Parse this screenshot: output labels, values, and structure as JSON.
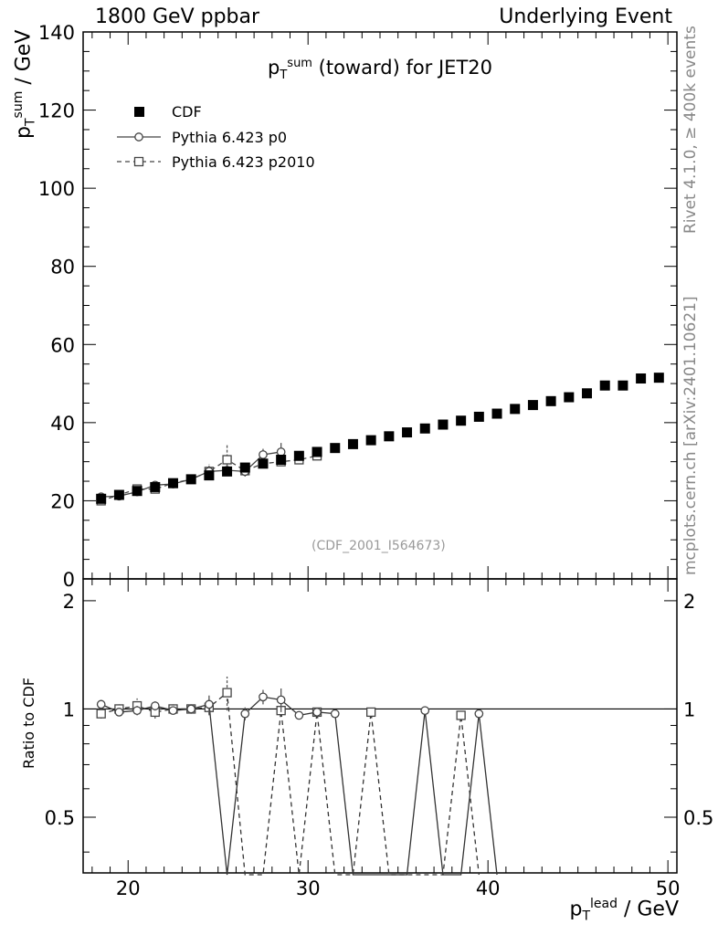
{
  "header": {
    "left": "1800 GeV ppbar",
    "right": "Underlying Event"
  },
  "side_labels": {
    "rivet": "Rivet 4.1.0, ≥ 400k events",
    "mcplots": "mcplots.cern.ch [arXiv:2401.10621]"
  },
  "reference": "(CDF_2001_I564673)",
  "title": {
    "prefix": "p",
    "sup": "sum",
    "sub": "T",
    "suffix": " (toward) for JET20"
  },
  "axes": {
    "ylabel_main": {
      "base": "p",
      "sup": "sum",
      "sub": "T",
      "unit": " / GeV"
    },
    "ylabel_ratio": "Ratio to CDF",
    "xlabel": {
      "base": "p",
      "sup": "lead",
      "sub": "T",
      "unit": " / GeV"
    }
  },
  "legend": [
    {
      "name": "CDF"
    },
    {
      "name": "Pythia 6.423 p0"
    },
    {
      "name": "Pythia 6.423 p2010"
    }
  ],
  "chart_data": {
    "type": "scatter",
    "title": "p_T^sum (toward) for JET20",
    "xlabel": "p_T^lead / GeV",
    "ylabel": "p_T^sum / GeV",
    "xlim": [
      17.5,
      50.5
    ],
    "ylim": [
      0,
      140
    ],
    "ratio_ylim": [
      0.35,
      2.3
    ],
    "x_ticks": [
      20,
      30,
      40,
      50
    ],
    "y_ticks": [
      0,
      20,
      40,
      60,
      80,
      100,
      120,
      140
    ],
    "ratio_ticks": [
      0.5,
      1,
      2
    ],
    "series": [
      {
        "name": "CDF",
        "x": [
          18.5,
          19.5,
          20.5,
          21.5,
          22.5,
          23.5,
          24.5,
          25.5,
          26.5,
          27.5,
          28.5,
          29.5,
          30.5,
          31.5,
          32.5,
          33.5,
          34.5,
          35.5,
          36.5,
          37.5,
          38.5,
          39.5,
          40.5,
          41.5,
          42.5,
          43.5,
          44.5,
          45.5,
          46.5,
          47.5,
          48.5,
          49.5
        ],
        "y": [
          20.5,
          21.5,
          22.5,
          23.5,
          24.5,
          25.5,
          26.5,
          27.5,
          28.5,
          29.5,
          30.5,
          31.5,
          32.5,
          33.5,
          34.5,
          35.5,
          36.5,
          37.5,
          38.5,
          39.5,
          40.5,
          41.5,
          42.3,
          43.5,
          44.5,
          45.5,
          46.5,
          47.5,
          49.5,
          49.5,
          51.3,
          51.5
        ]
      },
      {
        "name": "Pythia 6.423 p0",
        "x": [
          18.5,
          19.5,
          20.5,
          21.5,
          22.5,
          23.5,
          24.5,
          25.5,
          26.5,
          27.5,
          28.5
        ],
        "y": [
          21.0,
          21.2,
          22.3,
          24.0,
          24.3,
          25.5,
          27.5,
          27.8,
          27.5,
          31.8,
          32.5
        ],
        "yerr": [
          0.6,
          0.5,
          0.8,
          0.7,
          0.6,
          0.8,
          1.5,
          1.3,
          1.2,
          1.5,
          2.3
        ],
        "ratio_x": [
          18.5,
          19.5,
          20.5,
          21.5,
          22.5,
          23.5,
          24.5,
          25.5,
          26.5,
          27.5,
          28.5,
          29.5,
          30.5,
          31.5,
          32.5,
          33.5,
          34.5,
          35.5,
          36.5,
          37.5,
          38.5,
          39.5,
          40.5
        ],
        "ratio": [
          1.03,
          0.98,
          0.99,
          1.02,
          0.99,
          1.0,
          1.03,
          0,
          0.97,
          1.08,
          1.06,
          0.96,
          0.98,
          0.97,
          0,
          0,
          0,
          0,
          0.99,
          0,
          0,
          0.97,
          0
        ],
        "ratio_err": [
          0.03,
          0.02,
          0.03,
          0.03,
          0.02,
          0.03,
          0.06,
          0,
          0.04,
          0.05,
          0.08,
          0,
          0,
          0,
          0,
          0,
          0,
          0,
          0,
          0,
          0,
          0,
          0
        ]
      },
      {
        "name": "Pythia 6.423 p2010",
        "x": [
          18.5,
          19.5,
          20.5,
          21.5,
          22.5,
          23.5,
          24.5,
          25.5,
          26.5,
          27.5,
          28.5,
          29.5,
          30.5
        ],
        "y": [
          20.0,
          21.5,
          23.0,
          23.0,
          24.5,
          25.5,
          27.5,
          30.5,
          27.7,
          29.5,
          30.0,
          30.5,
          31.5
        ],
        "yerr": [
          0.5,
          0.6,
          1.2,
          0.9,
          0.6,
          0.8,
          1.8,
          4.0,
          1.5,
          1.2,
          1.0,
          0.8,
          0.8
        ],
        "ratio_x": [
          18.5,
          19.5,
          20.5,
          21.5,
          22.5,
          23.5,
          24.5,
          25.5,
          26.5,
          27.5,
          28.5,
          29.5,
          30.5,
          31.5,
          32.5,
          33.5,
          34.5,
          35.5,
          36.5,
          37.5,
          38.5,
          39.5
        ],
        "ratio": [
          0.97,
          1.0,
          1.02,
          0.98,
          1.0,
          1.0,
          1.01,
          1.11,
          0,
          0,
          0.99,
          0,
          0.98,
          0,
          0,
          0.98,
          0,
          0,
          0,
          0,
          0.96,
          0
        ],
        "ratio_err": [
          0.03,
          0.03,
          0.05,
          0.04,
          0.03,
          0.03,
          0.05,
          0.12,
          0,
          0,
          0,
          0,
          0,
          0,
          0,
          0,
          0,
          0,
          0,
          0,
          0,
          0
        ]
      }
    ]
  }
}
